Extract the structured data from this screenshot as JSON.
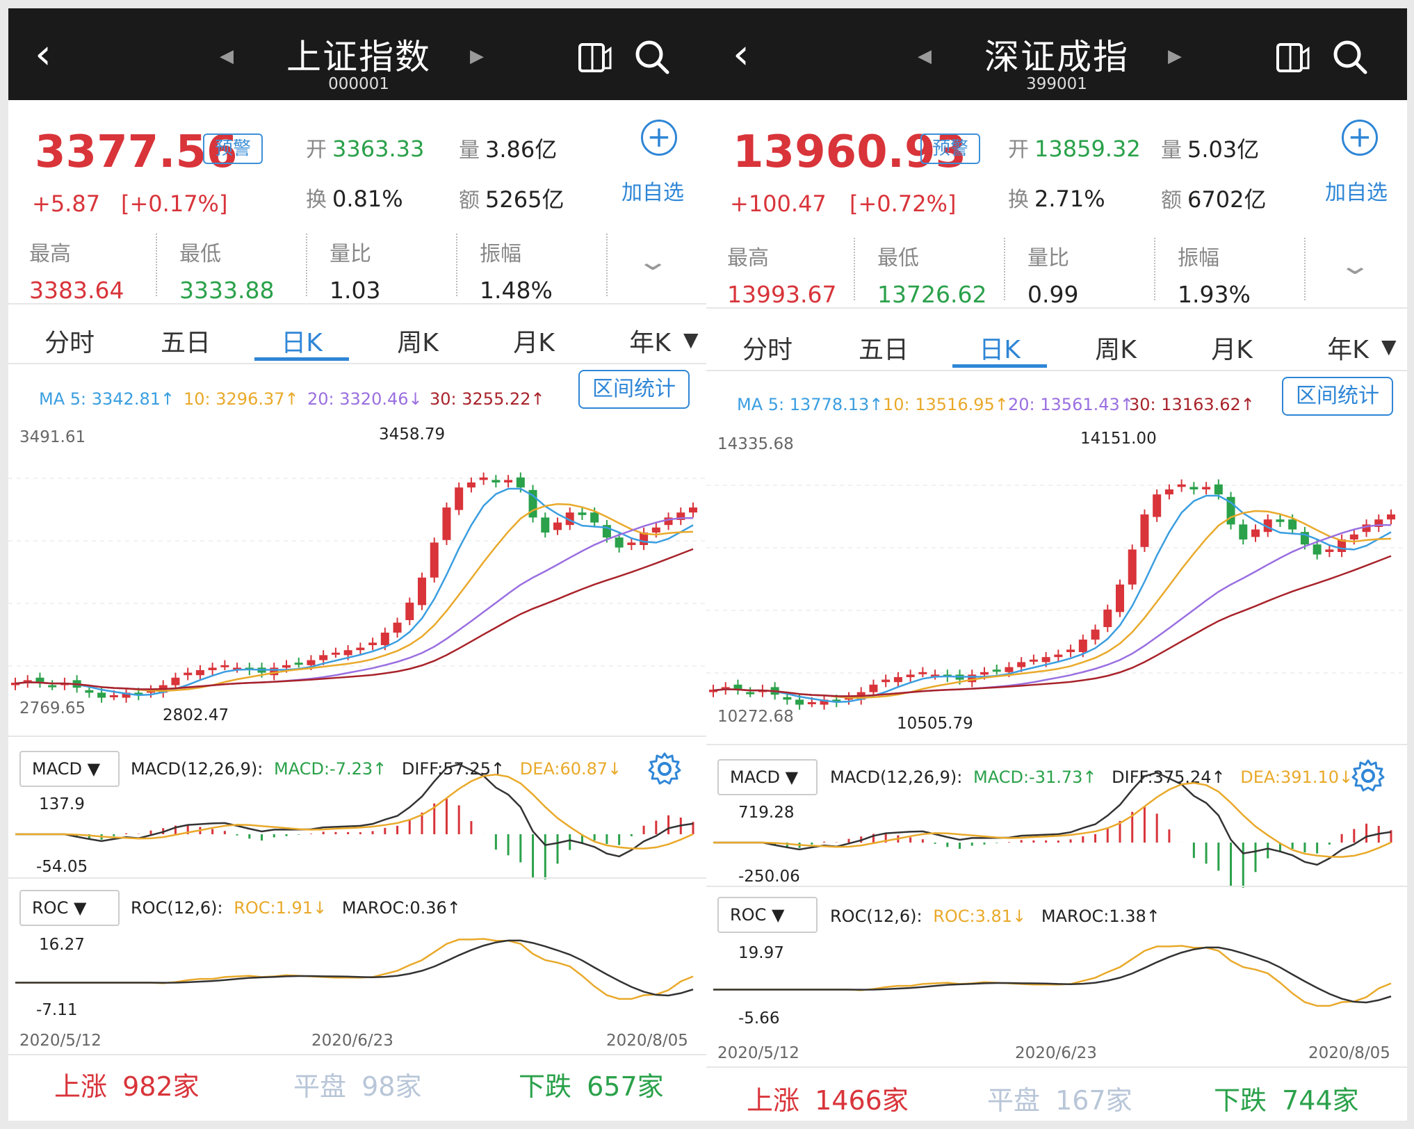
{
  "colors": {
    "up": "#d8343a",
    "down": "#2aa14a",
    "accent": "#2f86d6",
    "ma5": "#3a9ee0",
    "ma10": "#e9a92a",
    "ma20": "#9a6fe0",
    "ma30": "#a8232a"
  },
  "panels": [
    {
      "title": "上证指数",
      "code": "000001",
      "price": "3377.56",
      "alert": "预警",
      "change": "+5.87",
      "change_pct": "[+0.17%]",
      "open_label": "开",
      "open": "3363.33",
      "vol_label": "量",
      "vol": "3.86亿",
      "turn_label": "换",
      "turn": "0.81%",
      "amt_label": "额",
      "amt": "5265亿",
      "add_fav": "加自选",
      "stats": [
        {
          "label": "最高",
          "value": "3383.64"
        },
        {
          "label": "最低",
          "value": "3333.88"
        },
        {
          "label": "量比",
          "value": "1.03"
        },
        {
          "label": "振幅",
          "value": "1.48%"
        }
      ],
      "tabs": [
        "分时",
        "五日",
        "日K",
        "周K",
        "月K",
        "年K"
      ],
      "active_tab": 2,
      "ma": {
        "ma5": "MA 5: 3342.81↑",
        "ma10": "10: 3296.37↑",
        "ma20": "20: 3320.46↓",
        "ma30": "30: 3255.22↑"
      },
      "range_btn": "区间统计",
      "axis_top": "3491.61",
      "axis_bottom": "2769.65",
      "peak_label": "3458.79",
      "trough_label": "2802.47",
      "macd_dd": "MACD",
      "macd_params": "MACD(12,26,9):",
      "macd_val": "MACD:-7.23↑",
      "diff_val": "DIFF:57.25↑",
      "dea_val": "DEA:60.87↓",
      "macd_top": "137.9",
      "macd_bottom": "-54.05",
      "roc_dd": "ROC",
      "roc_params": "ROC(12,6):",
      "roc_val": "ROC:1.91↓",
      "maroc_val": "MAROC:0.36↑",
      "roc_top": "16.27",
      "roc_bottom": "-7.11",
      "dates": [
        "2020/5/12",
        "2020/6/23",
        "2020/8/05"
      ],
      "up_label": "上涨",
      "up_count": "982家",
      "flat_label": "平盘",
      "flat_count": "98家",
      "down_label": "下跌",
      "down_count": "657家"
    },
    {
      "title": "深证成指",
      "code": "399001",
      "price": "13960.93",
      "alert": "预警",
      "change": "+100.47",
      "change_pct": "[+0.72%]",
      "open_label": "开",
      "open": "13859.32",
      "vol_label": "量",
      "vol": "5.03亿",
      "turn_label": "换",
      "turn": "2.71%",
      "amt_label": "额",
      "amt": "6702亿",
      "add_fav": "加自选",
      "stats": [
        {
          "label": "最高",
          "value": "13993.67"
        },
        {
          "label": "最低",
          "value": "13726.62"
        },
        {
          "label": "量比",
          "value": "0.99"
        },
        {
          "label": "振幅",
          "value": "1.93%"
        }
      ],
      "tabs": [
        "分时",
        "五日",
        "日K",
        "周K",
        "月K",
        "年K"
      ],
      "active_tab": 2,
      "ma": {
        "ma5": "MA 5: 13778.13↑",
        "ma10": "10: 13516.95↑",
        "ma20": "20: 13561.43↑",
        "ma30": "30: 13163.62↑"
      },
      "range_btn": "区间统计",
      "axis_top": "14335.68",
      "axis_bottom": "10272.68",
      "peak_label": "14151.00",
      "trough_label": "10505.79",
      "macd_dd": "MACD",
      "macd_params": "MACD(12,26,9):",
      "macd_val": "MACD:-31.73↑",
      "diff_val": "DIFF:375.24↑",
      "dea_val": "DEA:391.10↓",
      "macd_top": "719.28",
      "macd_bottom": "-250.06",
      "roc_dd": "ROC",
      "roc_params": "ROC(12,6):",
      "roc_val": "ROC:3.81↓",
      "maroc_val": "MAROC:1.38↑",
      "roc_top": "19.97",
      "roc_bottom": "-5.66",
      "dates": [
        "2020/5/12",
        "2020/6/23",
        "2020/8/05"
      ],
      "up_label": "上涨",
      "up_count": "1466家",
      "flat_label": "平盘",
      "flat_count": "167家",
      "down_label": "下跌",
      "down_count": "744家"
    }
  ]
}
